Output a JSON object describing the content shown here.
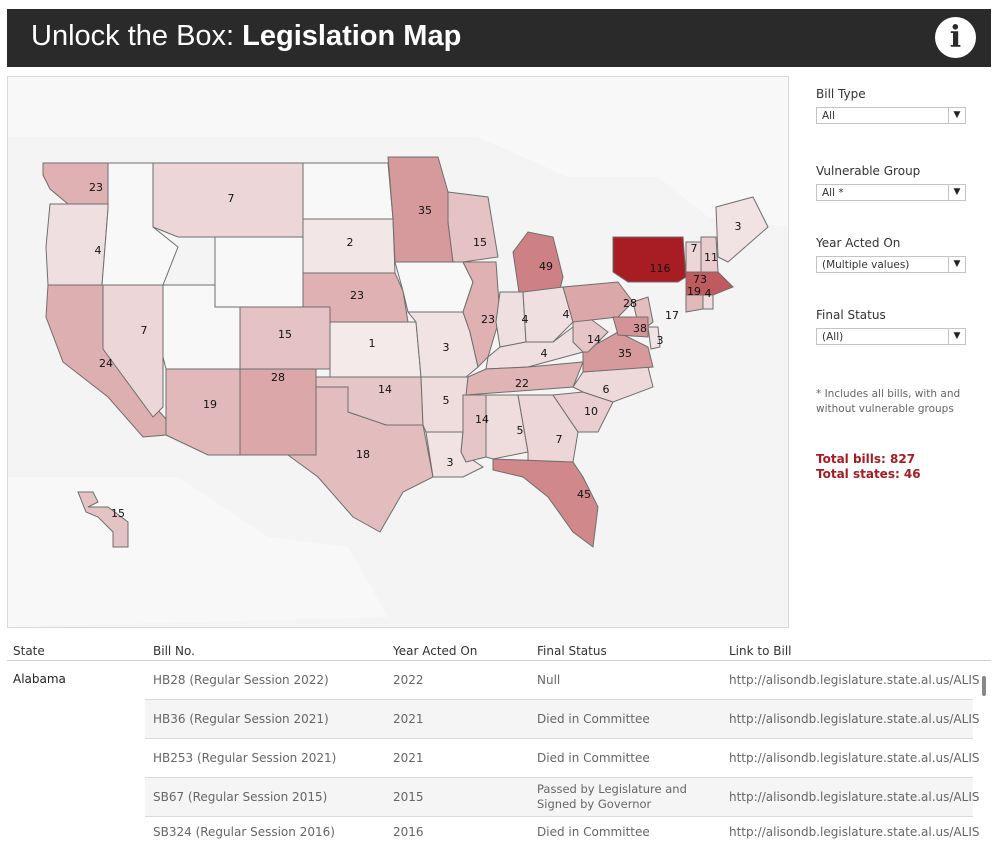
{
  "header": {
    "title_prefix": "Unlock the Box: ",
    "title_bold": "Legislation Map",
    "info_icon": "info-icon"
  },
  "colors": {
    "header_bg": "#2a2a2a",
    "accent": "#a61c22",
    "max_state": "#a81c23"
  },
  "map": {
    "states": [
      {
        "id": "WA",
        "count": "23"
      },
      {
        "id": "OR",
        "count": "4"
      },
      {
        "id": "CA",
        "count": "24"
      },
      {
        "id": "NV",
        "count": "7"
      },
      {
        "id": "ID",
        "count": ""
      },
      {
        "id": "MT",
        "count": "7"
      },
      {
        "id": "WY",
        "count": ""
      },
      {
        "id": "UT",
        "count": ""
      },
      {
        "id": "AZ",
        "count": "19"
      },
      {
        "id": "CO",
        "count": "15"
      },
      {
        "id": "NM",
        "count": "28"
      },
      {
        "id": "ND",
        "count": ""
      },
      {
        "id": "SD",
        "count": "2"
      },
      {
        "id": "NE",
        "count": "23"
      },
      {
        "id": "KS",
        "count": "1"
      },
      {
        "id": "OK",
        "count": "14"
      },
      {
        "id": "TX",
        "count": "18"
      },
      {
        "id": "MN",
        "count": "35"
      },
      {
        "id": "IA",
        "count": ""
      },
      {
        "id": "MO",
        "count": "3"
      },
      {
        "id": "AR",
        "count": "5"
      },
      {
        "id": "LA",
        "count": "3"
      },
      {
        "id": "WI",
        "count": "15"
      },
      {
        "id": "IL",
        "count": "23"
      },
      {
        "id": "MI",
        "count": "49"
      },
      {
        "id": "IN",
        "count": "4"
      },
      {
        "id": "OH",
        "count": "4"
      },
      {
        "id": "KY",
        "count": "4"
      },
      {
        "id": "TN",
        "count": "22"
      },
      {
        "id": "MS",
        "count": "14"
      },
      {
        "id": "AL",
        "count": "5"
      },
      {
        "id": "GA",
        "count": "7"
      },
      {
        "id": "FL",
        "count": "45"
      },
      {
        "id": "SC",
        "count": "10"
      },
      {
        "id": "NC",
        "count": "6"
      },
      {
        "id": "VA",
        "count": "35"
      },
      {
        "id": "WV",
        "count": "14"
      },
      {
        "id": "PA",
        "count": "28"
      },
      {
        "id": "NY",
        "count": "116"
      },
      {
        "id": "VT",
        "count": "7"
      },
      {
        "id": "NH",
        "count": "11"
      },
      {
        "id": "ME",
        "count": "3"
      },
      {
        "id": "MA",
        "count": "73"
      },
      {
        "id": "CT",
        "count": "19"
      },
      {
        "id": "RI",
        "count": "4"
      },
      {
        "id": "NJ",
        "count": "17"
      },
      {
        "id": "DE",
        "count": "3"
      },
      {
        "id": "MD",
        "count": "38"
      },
      {
        "id": "HI",
        "count": "15"
      }
    ]
  },
  "filters": [
    {
      "label": "Bill Type",
      "value": "All"
    },
    {
      "label": "Vulnerable Group",
      "value": "All *"
    },
    {
      "label": "Year Acted On",
      "value": "(Multiple values)"
    },
    {
      "label": "Final Status",
      "value": "(All)"
    }
  ],
  "footnote": "* Includes all bills, with and without vulnerable groups",
  "totals": {
    "bills": "Total bills: 827",
    "states": "Total states: 46"
  },
  "table": {
    "headers": [
      "State",
      "Bill No.",
      "Year Acted On",
      "Final Status",
      "Link to Bill"
    ],
    "state": "Alabama",
    "rows": [
      {
        "bill": "HB28 (Regular Session 2022)",
        "year": "2022",
        "status": "Null",
        "status2": "",
        "link": "http://alisondb.legislature.state.al.us/ALIS"
      },
      {
        "bill": "HB36 (Regular Session 2021)",
        "year": "2021",
        "status": "Died in Committee",
        "status2": "",
        "link": "http://alisondb.legislature.state.al.us/ALIS"
      },
      {
        "bill": "HB253 (Regular Session 2021)",
        "year": "2021",
        "status": "Died in Committee",
        "status2": "",
        "link": "http://alisondb.legislature.state.al.us/ALIS"
      },
      {
        "bill": "SB67 (Regular Session 2015)",
        "year": "2015",
        "status": "Passed by Legislature and",
        "status2": "Signed by Governor",
        "link": "http://alisondb.legislature.state.al.us/ALIS"
      },
      {
        "bill": "SB324 (Regular Session 2016)",
        "year": "2016",
        "status": "Died in Committee",
        "status2": "",
        "link": "http://alisondb.legislature.state.al.us/ALIS"
      }
    ]
  }
}
